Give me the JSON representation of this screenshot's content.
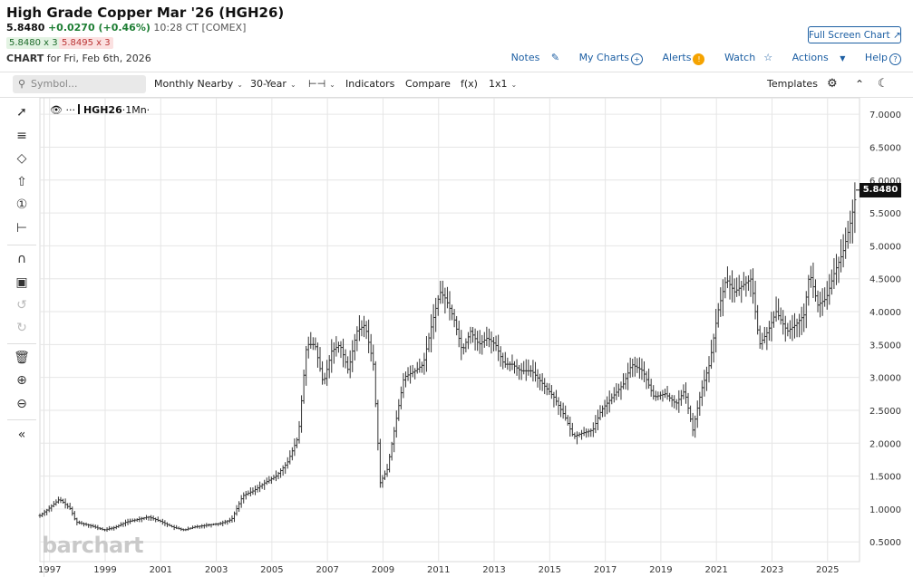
{
  "header": {
    "title": "High Grade Copper Mar '26 (HGH26)",
    "last": "5.8480",
    "change": "+0.0270 (+0.46%)",
    "time": "10:28 CT [COMEX]",
    "bid": "5.8480 x 3",
    "ask": "5.8495 x 3",
    "chart_label": "CHART",
    "chart_date": "for Fri, Feb 6th, 2026",
    "fullscreen": "Full Screen Chart"
  },
  "top_links": {
    "notes": "Notes",
    "my_charts": "My Charts",
    "alerts": "Alerts",
    "watch": "Watch",
    "actions": "Actions",
    "help": "Help"
  },
  "toolbar": {
    "symbol_placeholder": "Symbol...",
    "period": "Monthly Nearby",
    "range": "30-Year",
    "indicators": "Indicators",
    "compare": "Compare",
    "fx": "f(x)",
    "layout": "1x1",
    "templates": "Templates"
  },
  "legend": {
    "symbol": "HGH26",
    "interval": "·1Mn·"
  },
  "watermark": "barchart",
  "price_tag": "5.8480",
  "accent_color": "#1d5fa3",
  "up_color": "#1e7e34",
  "down_color": "#c0392b",
  "chart_data": {
    "type": "line",
    "style": "ohlc-bars",
    "x_ticks": [
      "1997",
      "1999",
      "2001",
      "2003",
      "2005",
      "2007",
      "2009",
      "2011",
      "2013",
      "2015",
      "2017",
      "2019",
      "2021",
      "2023",
      "2025"
    ],
    "y_ticks": [
      "7.0000",
      "6.5000",
      "6.0000",
      "5.5000",
      "5.0000",
      "4.5000",
      "4.0000",
      "3.5000",
      "3.0000",
      "2.5000",
      "2.0000",
      "1.5000",
      "1.0000",
      "0.5000"
    ],
    "ylim": [
      0.2,
      7.25
    ],
    "xlim": [
      1996.7,
      2026.2
    ],
    "grid": true,
    "last_price": 5.848,
    "series": [
      {
        "x": [
          1996.7,
          1997.0,
          1997.4,
          1997.8,
          1998.0,
          1998.5,
          1999.0,
          1999.4,
          1999.8,
          2000.2,
          2000.6,
          2001.0,
          2001.5,
          2001.9,
          2002.3,
          2002.8,
          2003.2,
          2003.6,
          2004.0,
          2004.4,
          2004.8,
          2005.2,
          2005.6,
          2006.0,
          2006.3,
          2006.6,
          2006.9,
          2007.2,
          2007.5,
          2007.8,
          2008.1,
          2008.4,
          2008.7,
          2008.95,
          2009.2,
          2009.5,
          2009.8,
          2010.2,
          2010.5,
          2010.8,
          2011.1,
          2011.3,
          2011.6,
          2011.9,
          2012.2,
          2012.5,
          2012.8,
          2013.1,
          2013.4,
          2013.7,
          2014.0,
          2014.4,
          2014.8,
          2015.2,
          2015.6,
          2015.9,
          2016.2,
          2016.6,
          2016.9,
          2017.3,
          2017.7,
          2018.0,
          2018.4,
          2018.8,
          2019.2,
          2019.6,
          2019.9,
          2020.2,
          2020.5,
          2020.8,
          2021.1,
          2021.4,
          2021.7,
          2022.0,
          2022.3,
          2022.6,
          2022.9,
          2023.2,
          2023.6,
          2023.9,
          2024.2,
          2024.4,
          2024.7,
          2025.0,
          2025.3,
          2025.6,
          2025.9,
          2026.1
        ],
        "y": [
          0.9,
          1.0,
          1.15,
          1.0,
          0.8,
          0.75,
          0.68,
          0.72,
          0.8,
          0.84,
          0.88,
          0.82,
          0.72,
          0.68,
          0.73,
          0.76,
          0.78,
          0.84,
          1.2,
          1.28,
          1.4,
          1.5,
          1.7,
          2.1,
          3.5,
          3.5,
          2.9,
          3.4,
          3.5,
          3.1,
          3.7,
          3.8,
          3.2,
          1.4,
          1.6,
          2.3,
          3.0,
          3.1,
          3.2,
          3.8,
          4.3,
          4.2,
          3.9,
          3.4,
          3.7,
          3.5,
          3.6,
          3.5,
          3.2,
          3.2,
          3.1,
          3.1,
          2.9,
          2.7,
          2.4,
          2.1,
          2.15,
          2.2,
          2.5,
          2.7,
          2.9,
          3.2,
          3.1,
          2.7,
          2.75,
          2.6,
          2.8,
          2.2,
          2.8,
          3.2,
          4.0,
          4.5,
          4.3,
          4.4,
          4.5,
          3.5,
          3.7,
          4.0,
          3.7,
          3.8,
          3.95,
          4.6,
          4.1,
          4.2,
          4.6,
          4.9,
          5.4,
          5.85
        ]
      }
    ]
  }
}
